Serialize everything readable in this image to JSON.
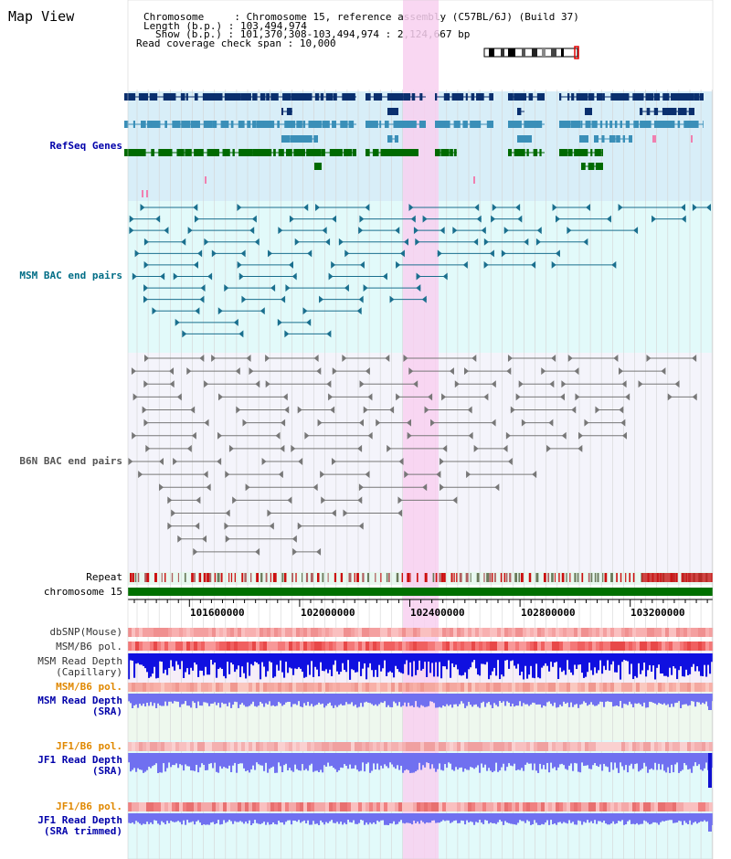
{
  "page": {
    "title": "Map View"
  },
  "info": {
    "chromosome_key": "Chromosome",
    "chromosome_value": "Chromosome 15, reference assembly (C57BL/6J) (Build 37)",
    "length_key": "Length (b.p.)",
    "length_value": "103,494,974",
    "show_key": "Show (b.p.)",
    "show_value": "101,370,308-103,494,974 : 2,124,667 bp",
    "coverage_key": "Read coverage check span",
    "coverage_value": "10,000"
  },
  "tracks": {
    "refseq": "RefSeq Genes",
    "msm_bac": "MSM BAC end pairs",
    "b6n_bac": "B6N BAC end pairs",
    "repeat": "Repeat",
    "chromosome": "chromosome 15",
    "dbsnp": "dbSNP(Mouse)",
    "msm_pol1": "MSM/B6 pol.",
    "msm_depth_cap_1": "MSM Read Depth",
    "msm_depth_cap_2": "(Capillary)",
    "msm_pol2": "MSM/B6 pol.",
    "msm_depth_sra_1": "MSM Read Depth",
    "msm_depth_sra_2": "(SRA)",
    "jf1_pol1": "JF1/B6 pol.",
    "jf1_depth_sra_1": "JF1 Read Depth",
    "jf1_depth_sra_2": "(SRA)",
    "jf1_pol2": "JF1/B6 pol.",
    "jf1_depth_trim_1": "JF1 Read Depth",
    "jf1_depth_trim_2": "(SRA trimmed)"
  },
  "axis": {
    "ticks": [
      "101600000",
      "102000000",
      "102400000",
      "102800000",
      "103200000"
    ]
  },
  "colors": {
    "refseq_dark": "#0a2f6e",
    "refseq_mid": "#3a8fb8",
    "refseq_green": "#006a00",
    "msm_bac": "#1a6f8e",
    "b6n_bac": "#777777",
    "chromosome": "#007000",
    "highlight": "#f8d8f0",
    "depth_blue": "#1010e0",
    "depth_light": "#7070f0"
  }
}
